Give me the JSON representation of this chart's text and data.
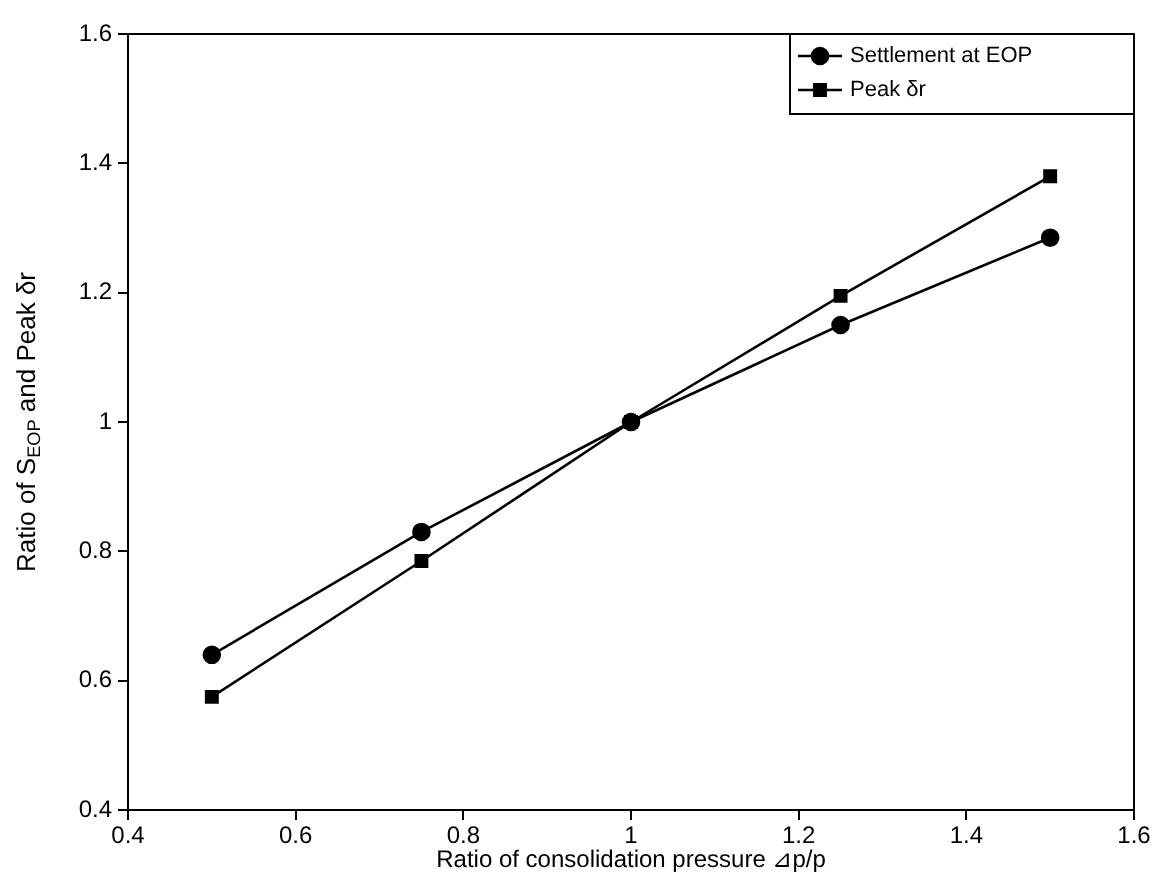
{
  "chart_data": {
    "type": "line",
    "xlabel": "Ratio of consolidation pressure ⊿p/p",
    "ylabel": "Ratio of S$_{EOP}$ and Peak δr",
    "x": [
      0.5,
      0.75,
      1,
      1.25,
      1.5
    ],
    "series": [
      {
        "name": "Settlement at EOP",
        "color": "#000000",
        "marker": "circle",
        "values": [
          0.64,
          0.83,
          1.0,
          1.15,
          1.285
        ]
      },
      {
        "name": "Peak δr",
        "color": "#000000",
        "marker": "square",
        "values": [
          0.575,
          0.785,
          1.0,
          1.195,
          1.38
        ]
      }
    ],
    "xlim": [
      0.4,
      1.6
    ],
    "xticks": [
      0.4,
      0.6,
      0.8,
      1,
      1.2,
      1.4,
      1.6
    ],
    "ylim": [
      0.4,
      1.6
    ],
    "yticks": [
      0.4,
      0.6,
      0.8,
      1,
      1.2,
      1.4,
      1.6
    ],
    "grid": false,
    "legend": "top right",
    "line_style": "solid"
  }
}
